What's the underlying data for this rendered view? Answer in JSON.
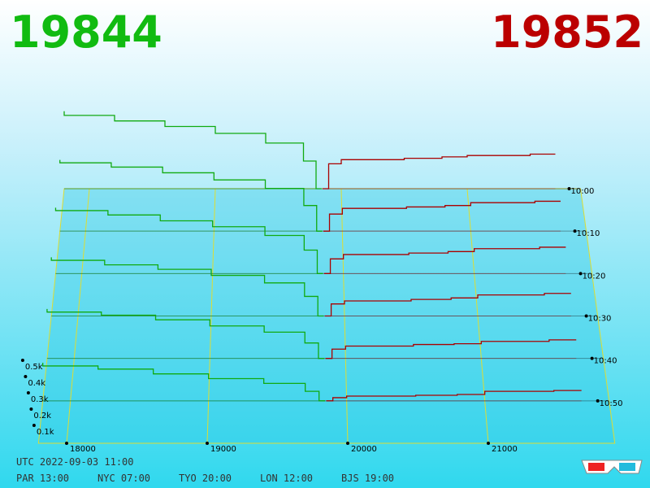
{
  "header": {
    "bid": "19844",
    "ask": "19852"
  },
  "clock": {
    "utc": "UTC 2022-09-03 11:00",
    "cities": [
      "PAR 13:00",
      "NYC 07:00",
      "TYO 20:00",
      "LON 12:00",
      "BJS 19:00"
    ]
  },
  "chart_data": {
    "type": "depth3d",
    "xlim": [
      17800,
      21900
    ],
    "xticks": [
      18000,
      19000,
      20000,
      21000
    ],
    "zlim": [
      0,
      60
    ],
    "zticks": [
      {
        "value": 0,
        "label": "10:00"
      },
      {
        "value": 10,
        "label": "10:10"
      },
      {
        "value": 20,
        "label": "10:20"
      },
      {
        "value": 30,
        "label": "10:30"
      },
      {
        "value": 40,
        "label": "10:40"
      },
      {
        "value": 50,
        "label": "10:50"
      }
    ],
    "yticks": [
      {
        "value": 100,
        "label": "0.1k"
      },
      {
        "value": 200,
        "label": "0.2k"
      },
      {
        "value": 300,
        "label": "0.3k"
      },
      {
        "value": 400,
        "label": "0.4k"
      },
      {
        "value": 500,
        "label": "0.5k"
      }
    ],
    "bids": {
      "color": "#11aa11",
      "x": [
        19844,
        19800,
        19700,
        19400,
        19000,
        18600,
        18200,
        17800
      ],
      "slices": [
        {
          "t": 0,
          "values": [
            0,
            200,
            330,
            400,
            450,
            490,
            530,
            560
          ]
        },
        {
          "t": 10,
          "values": [
            0,
            180,
            300,
            360,
            410,
            450,
            480,
            500
          ]
        },
        {
          "t": 20,
          "values": [
            0,
            160,
            260,
            320,
            360,
            400,
            430,
            450
          ]
        },
        {
          "t": 30,
          "values": [
            0,
            130,
            220,
            270,
            310,
            340,
            370,
            390
          ]
        },
        {
          "t": 40,
          "values": [
            0,
            100,
            170,
            210,
            250,
            280,
            300,
            320
          ]
        },
        {
          "t": 50,
          "values": [
            0,
            60,
            110,
            140,
            170,
            200,
            220,
            240
          ]
        }
      ]
    },
    "asks": {
      "color": "#aa0000",
      "x": [
        19852,
        19900,
        20000,
        20500,
        20800,
        21000,
        21500,
        21700
      ],
      "slices": [
        {
          "t": 0,
          "values": [
            0,
            180,
            210,
            220,
            230,
            240,
            250,
            250
          ]
        },
        {
          "t": 10,
          "values": [
            0,
            120,
            160,
            170,
            180,
            200,
            210,
            210
          ]
        },
        {
          "t": 20,
          "values": [
            0,
            100,
            130,
            140,
            150,
            170,
            180,
            180
          ]
        },
        {
          "t": 30,
          "values": [
            0,
            80,
            100,
            110,
            120,
            140,
            150,
            150
          ]
        },
        {
          "t": 40,
          "values": [
            0,
            60,
            80,
            90,
            95,
            110,
            120,
            120
          ]
        },
        {
          "t": 50,
          "values": [
            0,
            20,
            30,
            35,
            40,
            60,
            65,
            65
          ]
        }
      ]
    }
  }
}
